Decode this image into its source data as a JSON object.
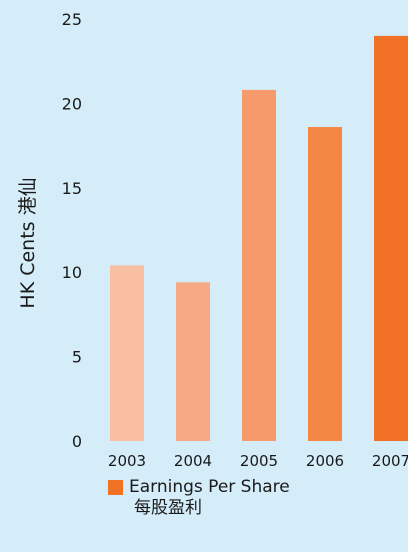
{
  "chart_data": {
    "type": "bar",
    "categories": [
      "2003",
      "2004",
      "2005",
      "2006",
      "2007"
    ],
    "values": [
      10.4,
      9.4,
      20.8,
      18.6,
      24.0
    ],
    "colors": [
      "#f9bfa3",
      "#f7a986",
      "#f69a6c",
      "#f48744",
      "#f17226"
    ],
    "ylabel": "HK Cents 港仙",
    "ylim": [
      0,
      25
    ],
    "yticks": [
      0,
      5,
      10,
      15,
      20,
      25
    ],
    "grid": false,
    "legend": {
      "position": "bottom",
      "color": "#f17226",
      "label": "Earnings Per Share",
      "sublabel": "每股盈利"
    }
  }
}
